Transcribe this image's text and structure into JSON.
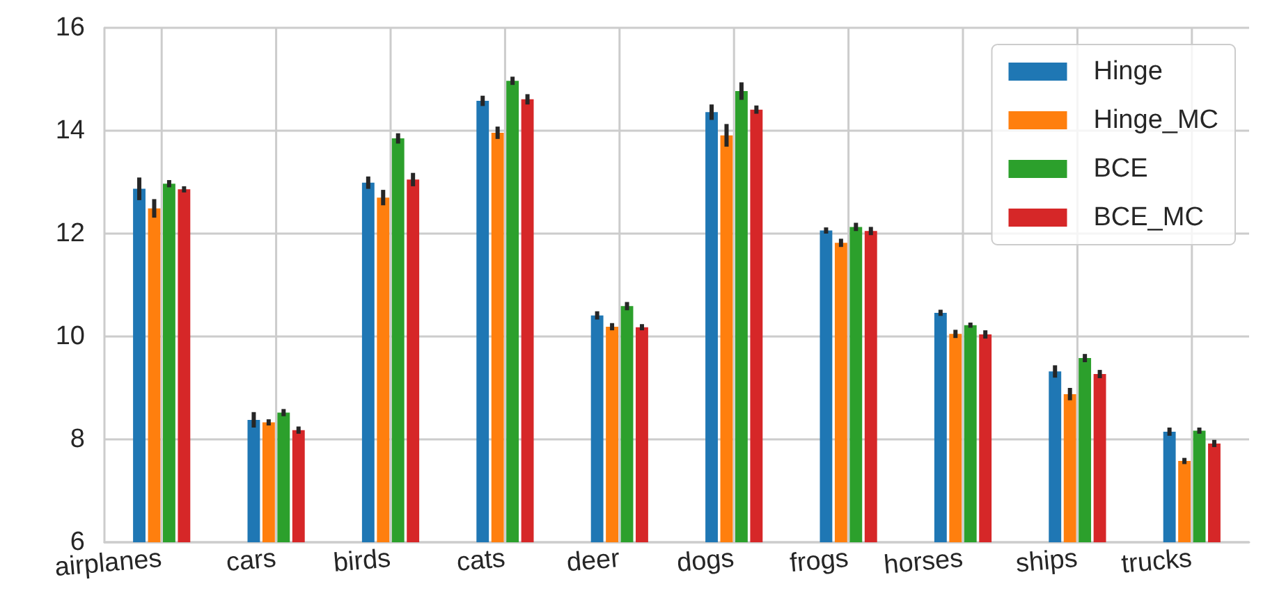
{
  "chart_data": {
    "type": "bar",
    "categories": [
      "airplanes",
      "cars",
      "birds",
      "cats",
      "deer",
      "dogs",
      "frogs",
      "horses",
      "ships",
      "trucks"
    ],
    "series": [
      {
        "name": "Hinge",
        "color": "#1f77b4",
        "values": [
          12.87,
          8.38,
          12.99,
          14.58,
          10.41,
          14.36,
          12.06,
          10.46,
          9.32,
          8.15
        ],
        "errors": [
          0.22,
          0.15,
          0.12,
          0.1,
          0.08,
          0.15,
          0.06,
          0.06,
          0.12,
          0.08
        ]
      },
      {
        "name": "Hinge_MC",
        "color": "#ff7f0e",
        "values": [
          12.49,
          8.33,
          12.7,
          13.96,
          10.19,
          13.91,
          11.82,
          10.05,
          8.88,
          7.58
        ],
        "errors": [
          0.18,
          0.06,
          0.15,
          0.12,
          0.07,
          0.22,
          0.08,
          0.08,
          0.12,
          0.06
        ]
      },
      {
        "name": "BCE",
        "color": "#2ca02c",
        "values": [
          12.97,
          8.52,
          13.85,
          14.97,
          10.59,
          14.77,
          12.13,
          10.22,
          9.58,
          8.17
        ],
        "errors": [
          0.07,
          0.07,
          0.1,
          0.08,
          0.08,
          0.17,
          0.08,
          0.05,
          0.08,
          0.06
        ]
      },
      {
        "name": "BCE_MC",
        "color": "#d62728",
        "values": [
          12.86,
          8.18,
          13.05,
          14.61,
          10.18,
          14.41,
          12.05,
          10.04,
          9.27,
          7.92
        ],
        "errors": [
          0.06,
          0.07,
          0.13,
          0.1,
          0.06,
          0.08,
          0.08,
          0.08,
          0.08,
          0.07
        ]
      }
    ],
    "ylim": [
      6,
      16
    ],
    "yticks": [
      6,
      8,
      10,
      12,
      14,
      16
    ],
    "grid": true,
    "legend": "top right"
  }
}
